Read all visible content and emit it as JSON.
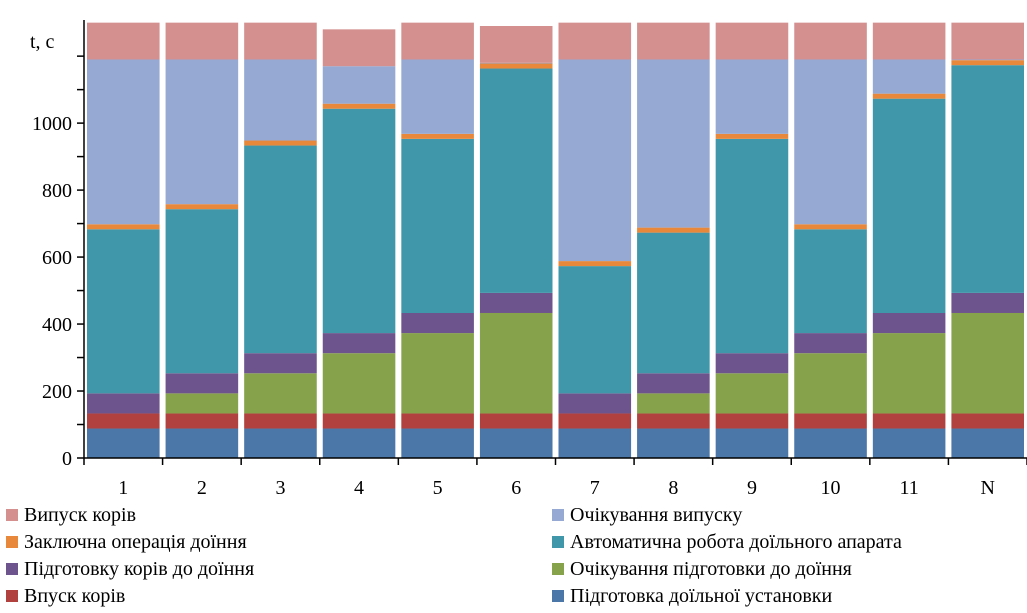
{
  "chart_data": {
    "type": "bar",
    "stacked": true,
    "ylabel": "t, с",
    "ylim": [
      0,
      1290
    ],
    "y_ticks": [
      0,
      200,
      400,
      600,
      800,
      1000
    ],
    "categories": [
      "1",
      "2",
      "3",
      "4",
      "5",
      "6",
      "7",
      "8",
      "9",
      "10",
      "11",
      "N"
    ],
    "grid": false,
    "legend_position": "bottom",
    "series": [
      {
        "name": "Підготовка доїльної установки",
        "color": "#4a76a8",
        "values": [
          88,
          88,
          88,
          88,
          88,
          88,
          88,
          88,
          88,
          88,
          88,
          88
        ]
      },
      {
        "name": "Впуск корів",
        "color": "#b0413e",
        "values": [
          45,
          45,
          45,
          45,
          45,
          45,
          45,
          45,
          45,
          45,
          45,
          45
        ]
      },
      {
        "name": "Очікування підготовки до доїння",
        "color": "#86a24a",
        "values": [
          0,
          60,
          120,
          180,
          240,
          300,
          0,
          60,
          120,
          180,
          240,
          300
        ]
      },
      {
        "name": "Підготовку корів до доїння",
        "color": "#6e548c",
        "values": [
          60,
          60,
          60,
          60,
          60,
          60,
          60,
          60,
          60,
          60,
          60,
          60
        ]
      },
      {
        "name": "Автоматична робота доїльного апарата",
        "color": "#3f97a9",
        "values": [
          490,
          490,
          620,
          670,
          520,
          670,
          380,
          420,
          640,
          310,
          640,
          680
        ]
      },
      {
        "name": "Заключна операція доїння",
        "color": "#e8883a",
        "values": [
          15,
          15,
          15,
          15,
          15,
          15,
          15,
          15,
          15,
          15,
          15,
          15
        ]
      },
      {
        "name": "Очікування випуску",
        "color": "#95a9d3",
        "values": [
          492,
          432,
          242,
          112,
          222,
          2,
          602,
          502,
          222,
          492,
          102,
          2
        ]
      },
      {
        "name": "Випуск корів",
        "color": "#d4908f",
        "values": [
          110,
          110,
          110,
          110,
          110,
          110,
          110,
          110,
          110,
          110,
          110,
          110
        ]
      }
    ]
  },
  "legend": {
    "items": [
      {
        "label": "Випуск корів",
        "color": "#d4908f"
      },
      {
        "label": "Очікування випуску",
        "color": "#95a9d3"
      },
      {
        "label": "Заключна операція доїння",
        "color": "#e8883a"
      },
      {
        "label": "Автоматична робота доїльного апарата",
        "color": "#3f97a9"
      },
      {
        "label": "Підготовку корів до доїння",
        "color": "#6e548c"
      },
      {
        "label": "Очікування підготовки до доїння",
        "color": "#86a24a"
      },
      {
        "label": "Впуск корів",
        "color": "#b0413e"
      },
      {
        "label": "Підготовка доїльної установки",
        "color": "#4a76a8"
      }
    ]
  }
}
